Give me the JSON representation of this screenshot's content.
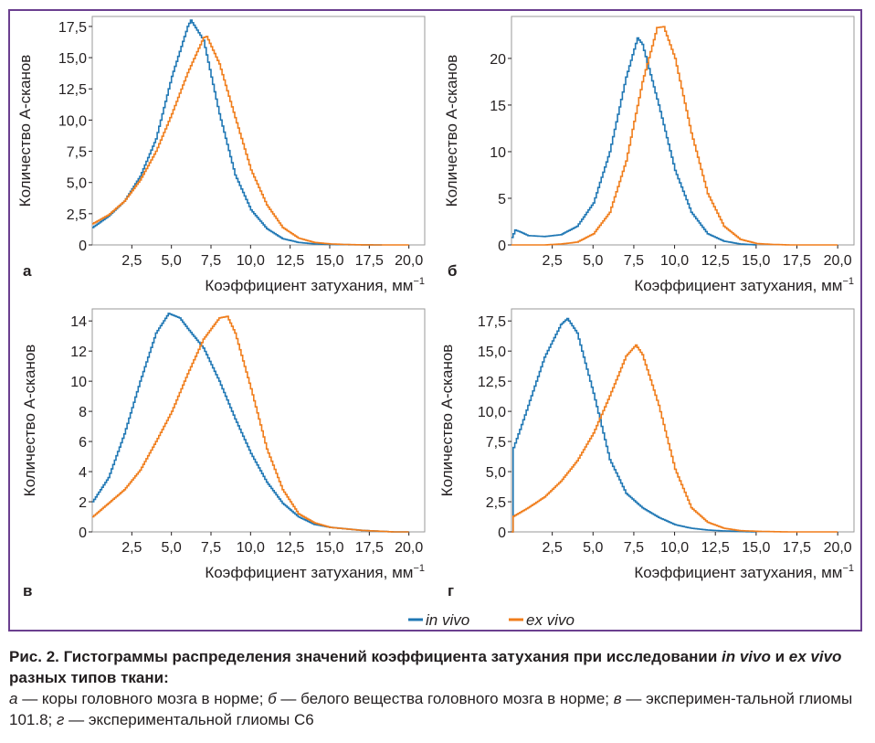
{
  "colors": {
    "in_vivo": "#1f77b4",
    "ex_vivo": "#f07d1b",
    "frame": "#6b3f8f",
    "axis": "#231f20"
  },
  "legend": {
    "in_vivo": "in vivo",
    "ex_vivo": "ex vivo",
    "placement": "bottom-center"
  },
  "chart_data": [
    {
      "panel": "а",
      "type": "line",
      "step": true,
      "xlabel": "Коэффициент затухания, мм",
      "xlabel_sup": "−1",
      "ylabel": "Количество A-сканов",
      "xlim": [
        0,
        21
      ],
      "ylim": [
        0,
        18.3
      ],
      "xticks": [
        "2,5",
        "5,0",
        "7,5",
        "10,0",
        "12,5",
        "15,0",
        "17,5",
        "20,0"
      ],
      "yticks": [
        "0",
        "2,5",
        "5,0",
        "7,5",
        "10,0",
        "12,5",
        "15,0",
        "17,5"
      ],
      "ytick_values": [
        0,
        2.5,
        5,
        7.5,
        10,
        12.5,
        15,
        17.5
      ],
      "grid": false,
      "series": [
        {
          "name": "in vivo",
          "x": [
            0,
            1,
            2,
            3,
            4,
            5,
            6,
            6.2,
            7,
            8,
            9,
            10,
            11,
            12,
            13,
            14,
            15,
            16,
            17,
            18,
            18.3
          ],
          "y": [
            1.4,
            2.3,
            3.5,
            5.5,
            8.5,
            13.5,
            17.5,
            18.0,
            16.4,
            10.5,
            5.6,
            2.8,
            1.3,
            0.5,
            0.2,
            0.08,
            0.04,
            0.02,
            0.01,
            0.0,
            0.0
          ]
        },
        {
          "name": "ex vivo",
          "x": [
            0,
            1,
            2,
            3,
            4,
            5,
            6,
            7,
            7.2,
            8,
            9,
            10,
            11,
            12,
            13,
            14,
            15,
            16,
            17,
            18,
            19,
            20
          ],
          "y": [
            1.7,
            2.4,
            3.5,
            5.2,
            7.5,
            10.5,
            13.8,
            16.6,
            16.7,
            14.5,
            10.2,
            6.0,
            3.2,
            1.4,
            0.55,
            0.2,
            0.08,
            0.03,
            0.01,
            0.0,
            0.0,
            0.0
          ]
        }
      ]
    },
    {
      "panel": "б",
      "type": "line",
      "step": true,
      "xlabel": "Коэффициент затухания, мм",
      "xlabel_sup": "−1",
      "ylabel": "Количество A-сканов",
      "xlim": [
        0,
        21
      ],
      "ylim": [
        0,
        24.5
      ],
      "xticks": [
        "2,5",
        "5,0",
        "7,5",
        "10,0",
        "12,5",
        "15,0",
        "17,5",
        "20,0"
      ],
      "yticks": [
        "0",
        "5",
        "10",
        "15",
        "20"
      ],
      "ytick_values": [
        0,
        5,
        10,
        15,
        20
      ],
      "grid": false,
      "series": [
        {
          "name": "in vivo",
          "x": [
            0,
            0.2,
            0.5,
            1,
            2,
            3,
            4,
            5,
            6,
            7,
            7.7,
            8,
            9,
            10,
            11,
            12,
            13,
            14,
            15
          ],
          "y": [
            0.8,
            1.6,
            1.4,
            1.0,
            0.9,
            1.1,
            2.0,
            4.5,
            10.0,
            18.0,
            22.2,
            21.5,
            15.0,
            8.0,
            3.5,
            1.2,
            0.4,
            0.1,
            0.0
          ]
        },
        {
          "name": "ex vivo",
          "x": [
            0,
            1,
            2,
            3,
            4,
            5,
            6,
            7,
            8,
            8.9,
            9.3,
            10,
            11,
            12,
            13,
            14,
            15,
            16,
            17,
            18,
            19,
            20
          ],
          "y": [
            0,
            0,
            0,
            0.1,
            0.3,
            1.2,
            3.5,
            9.0,
            17.5,
            23.3,
            23.4,
            20.0,
            12.0,
            5.5,
            2.0,
            0.6,
            0.15,
            0.05,
            0.0,
            0.0,
            0.0,
            0.0
          ]
        }
      ]
    },
    {
      "panel": "в",
      "type": "line",
      "step": true,
      "xlabel": "Коэффициент затухания, мм",
      "xlabel_sup": "−1",
      "ylabel": "Количество A-сканов",
      "xlim": [
        0,
        21
      ],
      "ylim": [
        0,
        14.8
      ],
      "xticks": [
        "2,5",
        "5,0",
        "7,5",
        "10,0",
        "12,5",
        "15,0",
        "17,5",
        "20,0"
      ],
      "yticks": [
        "0",
        "2",
        "4",
        "6",
        "8",
        "10",
        "12",
        "14"
      ],
      "ytick_values": [
        0,
        2,
        4,
        6,
        8,
        10,
        12,
        14
      ],
      "grid": false,
      "series": [
        {
          "name": "in vivo",
          "x": [
            0,
            1,
            2,
            3,
            4,
            4.8,
            5.5,
            6,
            7,
            8,
            9,
            10,
            11,
            12,
            13,
            14,
            15,
            16,
            17,
            18,
            19,
            20
          ],
          "y": [
            2.0,
            3.6,
            6.5,
            10.0,
            13.2,
            14.5,
            14.2,
            13.5,
            12.2,
            10.0,
            7.5,
            5.2,
            3.3,
            1.9,
            1.0,
            0.5,
            0.3,
            0.2,
            0.1,
            0.05,
            0.0,
            0.0
          ]
        },
        {
          "name": "ex vivo",
          "x": [
            0,
            1,
            2,
            3,
            4,
            5,
            6,
            7,
            8,
            8.5,
            9,
            10,
            11,
            12,
            13,
            14,
            15,
            16,
            17,
            18,
            19,
            20
          ],
          "y": [
            1.0,
            1.9,
            2.8,
            4.1,
            6.0,
            8.0,
            10.5,
            12.8,
            14.2,
            14.3,
            13.2,
            9.5,
            5.5,
            2.8,
            1.2,
            0.6,
            0.3,
            0.2,
            0.1,
            0.05,
            0.0,
            0.0
          ]
        }
      ]
    },
    {
      "panel": "г",
      "type": "line",
      "step": true,
      "xlabel": "Коэффициент затухания, мм",
      "xlabel_sup": "−1",
      "ylabel": "Количество A-сканов",
      "xlim": [
        0,
        21
      ],
      "ylim": [
        0,
        18.5
      ],
      "xticks": [
        "2,5",
        "5,0",
        "7,5",
        "10,0",
        "12,5",
        "15,0",
        "17,5",
        "20,0"
      ],
      "yticks": [
        "0",
        "2,5",
        "5,0",
        "7,5",
        "10,0",
        "12,5",
        "15,0",
        "17,5"
      ],
      "ytick_values": [
        0,
        2.5,
        5,
        7.5,
        10,
        12.5,
        15,
        17.5
      ],
      "grid": false,
      "series": [
        {
          "name": "in vivo",
          "x": [
            0,
            0.1,
            0.5,
            1,
            2,
            3,
            3.4,
            4,
            5,
            6,
            7,
            8,
            9,
            10,
            11,
            12,
            13,
            14,
            15
          ],
          "y": [
            0,
            7.0,
            8.5,
            10.5,
            14.5,
            17.2,
            17.7,
            16.5,
            11.5,
            6.0,
            3.2,
            2.0,
            1.2,
            0.6,
            0.3,
            0.15,
            0.08,
            0.03,
            0.0
          ]
        },
        {
          "name": "ex vivo",
          "x": [
            0,
            0.1,
            1,
            2,
            3,
            4,
            5,
            6,
            7,
            7.6,
            8,
            9,
            10,
            11,
            12,
            13,
            14,
            15,
            16,
            17,
            18,
            19,
            20
          ],
          "y": [
            0,
            1.3,
            2.0,
            2.9,
            4.2,
            5.9,
            8.2,
            11.3,
            14.6,
            15.5,
            14.7,
            10.5,
            5.2,
            2.0,
            0.8,
            0.3,
            0.1,
            0.05,
            0.02,
            0.0,
            0.0,
            0.0,
            0.0
          ]
        }
      ]
    }
  ],
  "caption": {
    "title_prefix": "Рис. 2. Гистограммы распределения значений коэффициента затухания при исследовании ",
    "title_in_vivo": "in vivo",
    "title_and": " и ",
    "title_ex_vivo": "ex vivo",
    "title_suffix": " разных типов ткани:",
    "a_letter": "а",
    "a_text": " — коры головного мозга в норме; ",
    "b_letter": "б",
    "b_text": " — белого вещества головного мозга в норме; ",
    "v_letter": "в",
    "v_text": " — эксперимен-тальной глиомы 101.8; ",
    "g_letter": "г",
    "g_text": " — экспериментальной глиомы C6"
  }
}
